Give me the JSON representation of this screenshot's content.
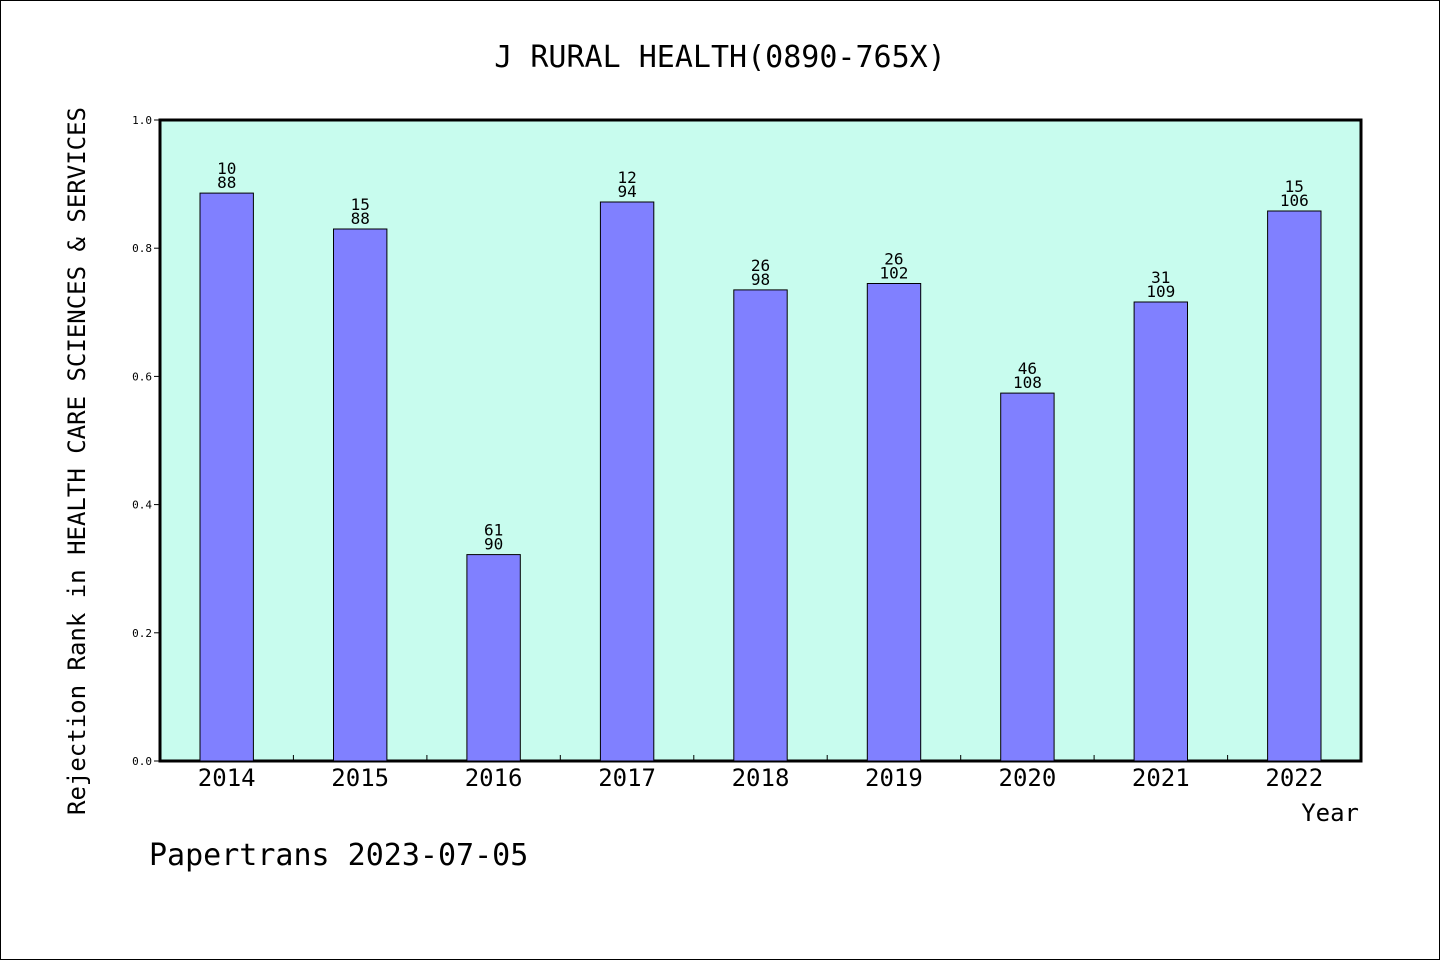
{
  "chart_data": {
    "type": "bar",
    "title": "J RURAL HEALTH(0890-765X)",
    "xlabel": "Year",
    "ylabel": "Rejection Rank in HEALTH CARE SCIENCES & SERVICES",
    "categories": [
      "2014",
      "2015",
      "2016",
      "2017",
      "2018",
      "2019",
      "2020",
      "2021",
      "2022"
    ],
    "values": [
      0.886,
      0.83,
      0.322,
      0.872,
      0.735,
      0.745,
      0.574,
      0.716,
      0.858
    ],
    "bar_labels": [
      [
        "10",
        "88"
      ],
      [
        "15",
        "88"
      ],
      [
        "61",
        "90"
      ],
      [
        "12",
        "94"
      ],
      [
        "26",
        "98"
      ],
      [
        "26",
        "102"
      ],
      [
        "46",
        "108"
      ],
      [
        "31",
        "109"
      ],
      [
        "15",
        "106"
      ]
    ],
    "yticks": [
      "0.0",
      "0.2",
      "0.4",
      "0.6",
      "0.8",
      "1.0"
    ],
    "ylim": [
      0,
      1.0
    ],
    "grid": false,
    "colors": {
      "plot_background": "#c8fcee",
      "bar_fill": "#8080ff",
      "bar_edge": "#000000"
    }
  },
  "footer": "Papertrans 2023-07-05"
}
